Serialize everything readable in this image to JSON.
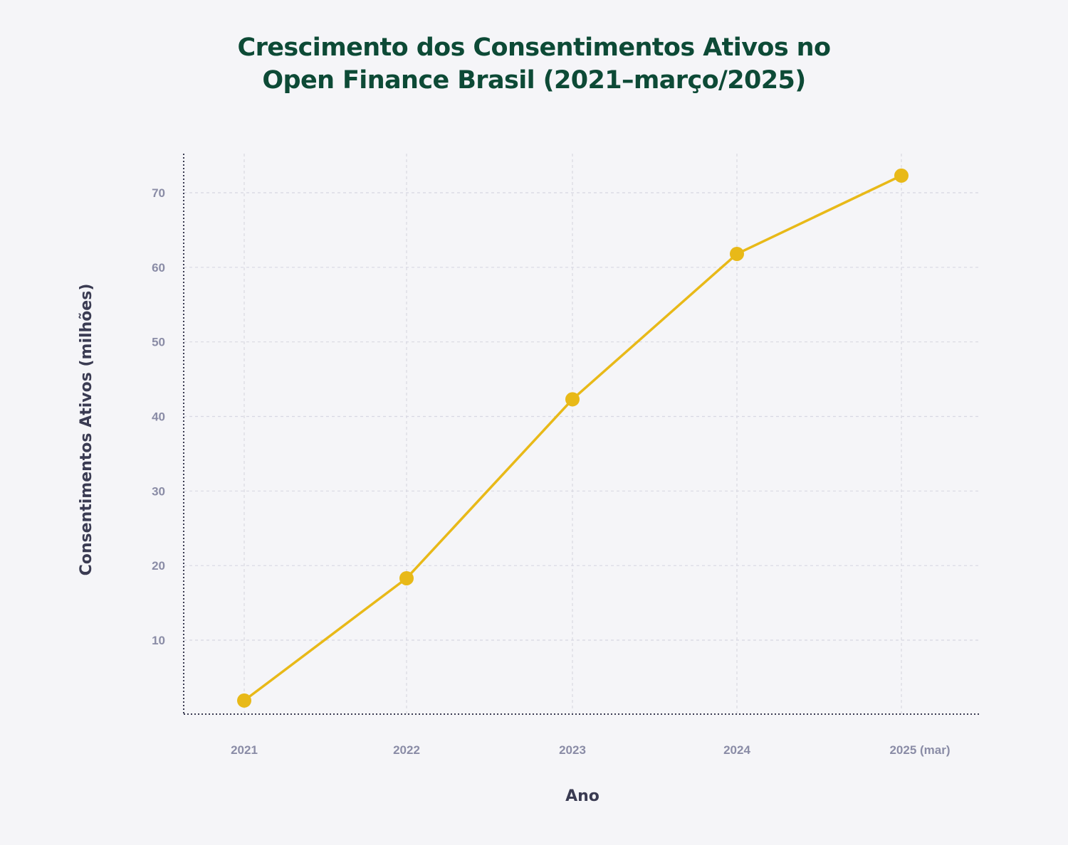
{
  "chart_data": {
    "type": "line",
    "title_lines": [
      "Crescimento dos Consentimentos Ativos no",
      "Open Finance Brasil (2021–março/2025)"
    ],
    "xlabel": "Ano",
    "ylabel": "Consentimentos Ativos (milhões)",
    "categories": [
      "2021",
      "2022",
      "2023",
      "2024",
      "2025 (mar)"
    ],
    "series": [
      {
        "values": [
          1.9,
          18.3,
          42.3,
          61.8,
          72.3
        ]
      }
    ],
    "yticks": [
      10,
      20,
      30,
      40,
      50,
      60,
      70
    ],
    "ylim": [
      0,
      75
    ],
    "grid": true,
    "colors": {
      "line": "#e8b918",
      "grid": "#d8d8e2",
      "axis": "#3a3b52",
      "title": "#0d4a36",
      "tick_label": "#8a8ca6",
      "background": "#f5f5f8"
    }
  }
}
